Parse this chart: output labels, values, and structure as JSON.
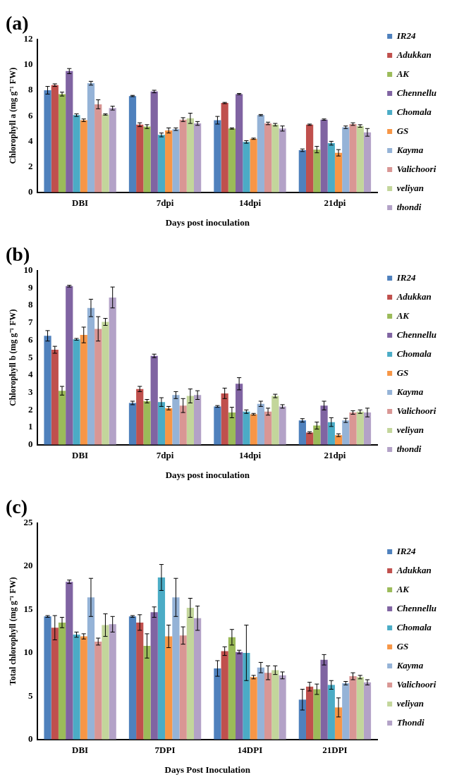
{
  "chart_data": [
    {
      "type": "bar",
      "title": "(a)",
      "xlabel": "Days post inoculation",
      "ylabel": "Chlorophyll a (mg g⁻¹ FW)",
      "categories": [
        "DBI",
        "7dpi",
        "14dpi",
        "21dpi"
      ],
      "ylim": [
        0,
        12
      ],
      "yticks": [
        0,
        2,
        4,
        6,
        8,
        10,
        12
      ],
      "grid": false,
      "legend": "right",
      "series": [
        {
          "name": "IR24",
          "color": "#4f81bd",
          "values": [
            8.0,
            7.55,
            5.65,
            3.3
          ],
          "errors": [
            0.3,
            0.05,
            0.3,
            0.1
          ]
        },
        {
          "name": "Adukkan",
          "color": "#c0504d",
          "values": [
            8.4,
            5.3,
            7.0,
            5.3
          ],
          "errors": [
            0.1,
            0.15,
            0.05,
            0.05
          ]
        },
        {
          "name": "AK",
          "color": "#9bbb59",
          "values": [
            7.7,
            5.15,
            5.0,
            3.35
          ],
          "errors": [
            0.15,
            0.15,
            0.05,
            0.25
          ]
        },
        {
          "name": "Chennellu",
          "color": "#8064a2",
          "values": [
            9.5,
            7.9,
            7.7,
            5.7
          ],
          "errors": [
            0.2,
            0.1,
            0.05,
            0.05
          ]
        },
        {
          "name": "Chomala",
          "color": "#4bacc6",
          "values": [
            6.05,
            4.5,
            3.95,
            3.85
          ],
          "errors": [
            0.1,
            0.15,
            0.1,
            0.15
          ]
        },
        {
          "name": "GS",
          "color": "#f79646",
          "values": [
            5.65,
            4.85,
            4.2,
            3.1
          ],
          "errors": [
            0.1,
            0.2,
            0.05,
            0.25
          ]
        },
        {
          "name": "Kayma",
          "color": "#95b3d7",
          "values": [
            8.55,
            4.95,
            6.05,
            5.1
          ],
          "errors": [
            0.15,
            0.1,
            0.05,
            0.1
          ]
        },
        {
          "name": "Valichoori",
          "color": "#d99694",
          "values": [
            6.9,
            5.7,
            5.4,
            5.35
          ],
          "errors": [
            0.35,
            0.15,
            0.1,
            0.1
          ]
        },
        {
          "name": "veliyan",
          "color": "#c3d69b",
          "values": [
            6.1,
            5.8,
            5.3,
            5.2
          ],
          "errors": [
            0.05,
            0.4,
            0.1,
            0.1
          ]
        },
        {
          "name": "thondi",
          "color": "#b3a2c7",
          "values": [
            6.6,
            5.4,
            5.0,
            4.7
          ],
          "errors": [
            0.15,
            0.15,
            0.2,
            0.3
          ]
        }
      ]
    },
    {
      "type": "bar",
      "title": "(b)",
      "xlabel": "Days post inoculation",
      "ylabel": "Chlorophyll b (mg g⁻¹ FW)",
      "categories": [
        "DBI",
        "7dpi",
        "14dpi",
        "21dpi"
      ],
      "ylim": [
        0,
        10
      ],
      "yticks": [
        0,
        1,
        2,
        3,
        4,
        5,
        6,
        7,
        8,
        9,
        10
      ],
      "grid": false,
      "legend": "right",
      "series": [
        {
          "name": "IR24",
          "color": "#4f81bd",
          "values": [
            6.25,
            2.4,
            2.2,
            1.4
          ],
          "errors": [
            0.3,
            0.1,
            0.05,
            0.1
          ]
        },
        {
          "name": "Adukkan",
          "color": "#c0504d",
          "values": [
            5.45,
            3.2,
            2.95,
            0.7
          ],
          "errors": [
            0.2,
            0.15,
            0.3,
            0.05
          ]
        },
        {
          "name": "AK",
          "color": "#9bbb59",
          "values": [
            3.1,
            2.5,
            1.85,
            1.1
          ],
          "errors": [
            0.25,
            0.1,
            0.3,
            0.2
          ]
        },
        {
          "name": "Chennellu",
          "color": "#8064a2",
          "values": [
            9.1,
            5.1,
            3.5,
            2.25
          ],
          "errors": [
            0.05,
            0.1,
            0.35,
            0.25
          ]
        },
        {
          "name": "Chomala",
          "color": "#4bacc6",
          "values": [
            6.05,
            2.45,
            1.9,
            1.3
          ],
          "errors": [
            0.05,
            0.25,
            0.1,
            0.25
          ]
        },
        {
          "name": "GS",
          "color": "#f79646",
          "values": [
            6.3,
            2.1,
            1.75,
            0.55
          ],
          "errors": [
            0.45,
            0.1,
            0.05,
            0.08
          ]
        },
        {
          "name": "Kayma",
          "color": "#95b3d7",
          "values": [
            7.85,
            2.85,
            2.35,
            1.4
          ],
          "errors": [
            0.5,
            0.2,
            0.15,
            0.12
          ]
        },
        {
          "name": "Valichoori",
          "color": "#d99694",
          "values": [
            6.65,
            2.25,
            1.9,
            1.85
          ],
          "errors": [
            0.7,
            0.4,
            0.2,
            0.1
          ]
        },
        {
          "name": "veliyan",
          "color": "#c3d69b",
          "values": [
            7.05,
            2.8,
            2.8,
            1.9
          ],
          "errors": [
            0.2,
            0.4,
            0.1,
            0.1
          ]
        },
        {
          "name": "thondi",
          "color": "#b3a2c7",
          "values": [
            8.45,
            2.85,
            2.2,
            1.85
          ],
          "errors": [
            0.6,
            0.25,
            0.1,
            0.25
          ]
        }
      ]
    },
    {
      "type": "bar",
      "title": "(c)",
      "xlabel": "Days Post Inoculation",
      "ylabel": "Total chlorophyll (mg g⁻¹ FW)",
      "categories": [
        "DBI",
        "7DPI",
        "14DPI",
        "21DPI"
      ],
      "ylim": [
        0,
        25
      ],
      "yticks": [
        0,
        5,
        10,
        15,
        20,
        25
      ],
      "grid": false,
      "legend": "right",
      "series": [
        {
          "name": "IR24",
          "color": "#4f81bd",
          "values": [
            14.2,
            14.2,
            8.2,
            4.6
          ],
          "errors": [
            0.1,
            0.1,
            0.9,
            1.2
          ]
        },
        {
          "name": "Adukkan",
          "color": "#c0504d",
          "values": [
            12.9,
            13.5,
            10.2,
            6.1
          ],
          "errors": [
            1.4,
            0.9,
            0.5,
            0.5
          ]
        },
        {
          "name": "AK",
          "color": "#9bbb59",
          "values": [
            13.5,
            10.8,
            11.8,
            5.8
          ],
          "errors": [
            0.6,
            1.4,
            0.9,
            0.6
          ]
        },
        {
          "name": "Chennellu",
          "color": "#8064a2",
          "values": [
            18.2,
            14.7,
            10.1,
            9.2
          ],
          "errors": [
            0.2,
            0.6,
            0.2,
            0.6
          ]
        },
        {
          "name": "Chomala",
          "color": "#4bacc6",
          "values": [
            12.1,
            18.7,
            10.0,
            6.3
          ],
          "errors": [
            0.3,
            1.5,
            3.2,
            0.5
          ]
        },
        {
          "name": "GS",
          "color": "#f79646",
          "values": [
            11.9,
            11.9,
            7.2,
            3.7
          ],
          "errors": [
            0.3,
            1.3,
            0.2,
            1.1
          ]
        },
        {
          "name": "Kayma",
          "color": "#95b3d7",
          "values": [
            16.4,
            16.4,
            8.3,
            6.5
          ],
          "errors": [
            2.2,
            2.2,
            0.6,
            0.2
          ]
        },
        {
          "name": "Valichoori",
          "color": "#d99694",
          "values": [
            11.3,
            12.0,
            7.7,
            7.3
          ],
          "errors": [
            0.4,
            1.0,
            0.8,
            0.4
          ]
        },
        {
          "name": "veliyan",
          "color": "#c3d69b",
          "values": [
            13.2,
            15.2,
            8.0,
            7.2
          ],
          "errors": [
            1.3,
            1.1,
            0.5,
            0.2
          ]
        },
        {
          "name": "Thondi",
          "color": "#b3a2c7",
          "values": [
            13.3,
            14.0,
            7.4,
            6.6
          ],
          "errors": [
            0.9,
            1.4,
            0.4,
            0.3
          ]
        }
      ]
    }
  ]
}
